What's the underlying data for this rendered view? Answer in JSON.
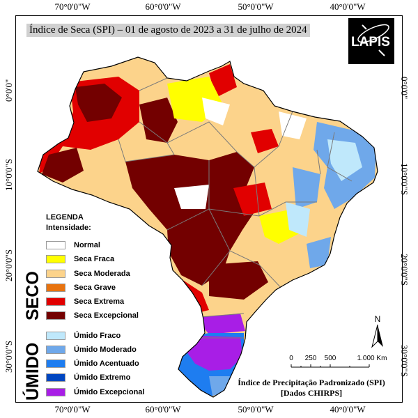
{
  "title": "Índice de Seca (SPI) – 01 de agosto de 2023 a 31 de julho de 2024",
  "logo": {
    "text": "LAPIS"
  },
  "axes": {
    "top": [
      "70°0'0\"W",
      "60°0'0\"W",
      "50°0'0\"W",
      "40°0'0\"W"
    ],
    "bottom": [
      "70°0'0\"W",
      "60°0'0\"W",
      "50°0'0\"W",
      "40°0'0\"W"
    ],
    "left": [
      "0°0'0\"",
      "10°0'0\"S",
      "20°0'0\"S",
      "30°0'0\"S"
    ],
    "right": [
      "0°0'0\"",
      "10°0'0\"S",
      "20°0'0\"S",
      "30°0'0\"S"
    ]
  },
  "legend": {
    "heading": "LEGENDA",
    "subheading": "Intensidade:",
    "dry_group": "SECO",
    "wet_group": "ÚMIDO",
    "items": [
      {
        "label": "Normal",
        "color": "#ffffff"
      },
      {
        "label": "Seca Fraca",
        "color": "#ffff00"
      },
      {
        "label": "Seca Moderada",
        "color": "#fcd38b"
      },
      {
        "label": "Seca Grave",
        "color": "#e8730f"
      },
      {
        "label": "Seca Extrema",
        "color": "#e10000"
      },
      {
        "label": "Seca Excepcional",
        "color": "#730000"
      },
      {
        "label": "Úmido Fraco",
        "color": "#bfe8fb"
      },
      {
        "label": "Úmido Moderado",
        "color": "#6fa8ea"
      },
      {
        "label": "Úmido Acentuado",
        "color": "#1e7df0"
      },
      {
        "label": "Úmido Extremo",
        "color": "#0046c0"
      },
      {
        "label": "Úmido Excepcional",
        "color": "#a81ee6"
      }
    ]
  },
  "north_arrow": {
    "label": "N"
  },
  "scale_bar": {
    "ticks": [
      "0",
      "250",
      "500",
      "1.000 Km"
    ]
  },
  "source": {
    "line1": "Índice de Precipitação Padronizado (SPI)",
    "line2": "[Dados CHIRPS]"
  }
}
